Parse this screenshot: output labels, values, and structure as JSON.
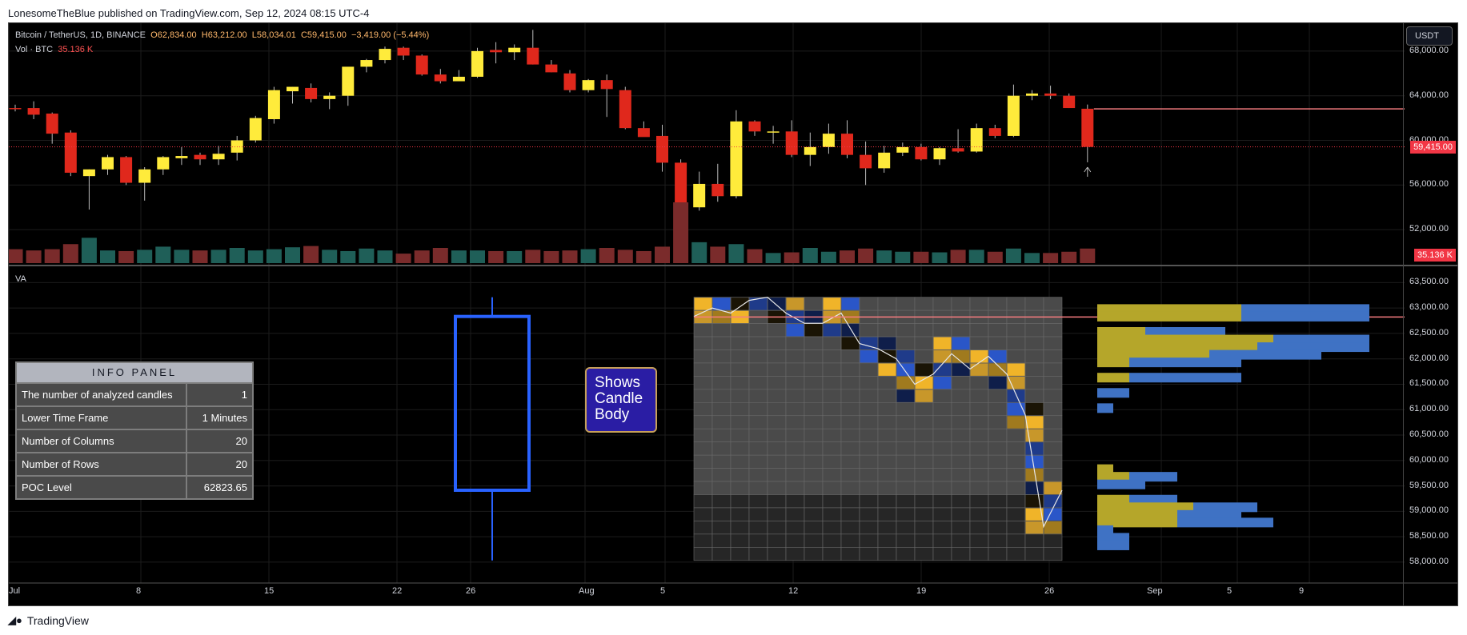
{
  "header": {
    "published": "LonesomeTheBlue published on TradingView.com, Sep 12, 2024 08:15 UTC-4"
  },
  "legend": {
    "symbol": "Bitcoin / TetherUS, 1D, BINANCE",
    "o": "O62,834.00",
    "h": "H63,212.00",
    "l": "L58,034.01",
    "c": "C59,415.00",
    "chg": "−3,419.00 (−5.44%)",
    "vol_label": "Vol · BTC",
    "vol_value": "35.136 K"
  },
  "price_axis": {
    "currency": "USDT",
    "ticks": [
      "68,000.00",
      "64,000.00",
      "60,000.00",
      "56,000.00",
      "52,000.00"
    ],
    "last_price": "59,415.00",
    "last_volume": "35.136 K"
  },
  "va_axis": {
    "ticks": [
      "63,500.00",
      "63,000.00",
      "62,500.00",
      "62,000.00",
      "61,500.00",
      "61,000.00",
      "60,500.00",
      "60,000.00",
      "59,500.00",
      "59,000.00",
      "58,500.00",
      "58,000.00"
    ]
  },
  "time_axis": {
    "labels": [
      "Jul",
      "8",
      "15",
      "22",
      "26",
      "Aug",
      "5",
      "12",
      "19",
      "26",
      "Sep",
      "5",
      "9"
    ]
  },
  "va_panel": {
    "label": "VA",
    "body_label": [
      "Shows",
      "Candle",
      "Body"
    ]
  },
  "info_panel": {
    "title": "INFO PANEL",
    "rows": [
      {
        "key": "The number of analyzed candles",
        "value": "1"
      },
      {
        "key": "Lower Time Frame",
        "value": "1 Minutes"
      },
      {
        "key": "Number of Columns",
        "value": "20"
      },
      {
        "key": "Number of Rows",
        "value": "20"
      },
      {
        "key": "POC Level",
        "value": "62823.65"
      }
    ]
  },
  "footer": {
    "brand": "TradingView"
  },
  "colors": {
    "up": "#ffeb3b",
    "down": "#e0281c",
    "vol_up": "#1f5f58",
    "vol_down": "#7a2b2b",
    "grid": "#1c1c1c",
    "poc": "#f77c80",
    "profile_a": "#b5a62a",
    "profile_b": "#3f72c4"
  },
  "chart_data": [
    {
      "type": "candlestick",
      "title": "Bitcoin / TetherUS, 1D, BINANCE",
      "ylim": [
        49000,
        70500
      ],
      "series": [
        {
          "name": "OHLC",
          "values": [
            [
              62900,
              63200,
              62600,
              62800
            ],
            [
              62900,
              63500,
              61900,
              62300
            ],
            [
              62400,
              62500,
              59700,
              60600
            ],
            [
              60700,
              60900,
              56800,
              57100
            ],
            [
              56800,
              57400,
              53800,
              57400
            ],
            [
              57400,
              58700,
              56900,
              58500
            ],
            [
              58500,
              58600,
              56000,
              56200
            ],
            [
              56200,
              57600,
              54600,
              57400
            ],
            [
              57400,
              58600,
              56900,
              58500
            ],
            [
              58400,
              59400,
              57800,
              58600
            ],
            [
              58700,
              58900,
              57800,
              58300
            ],
            [
              58300,
              59500,
              57800,
              58800
            ],
            [
              58900,
              60400,
              58200,
              60000
            ],
            [
              60000,
              62200,
              59800,
              62000
            ],
            [
              61900,
              64800,
              61500,
              64500
            ],
            [
              64400,
              64800,
              63300,
              64800
            ],
            [
              64700,
              65100,
              63400,
              63700
            ],
            [
              63700,
              64300,
              62800,
              64000
            ],
            [
              64000,
              65000,
              63100,
              66600
            ],
            [
              66600,
              67300,
              66100,
              67200
            ],
            [
              67200,
              68400,
              66900,
              68200
            ],
            [
              68300,
              68400,
              67200,
              67600
            ],
            [
              67600,
              67700,
              65800,
              65900
            ],
            [
              65900,
              66400,
              65100,
              65300
            ],
            [
              65300,
              66300,
              65400,
              65700
            ],
            [
              65700,
              68300,
              65600,
              68000
            ],
            [
              68100,
              68800,
              66900,
              67900
            ],
            [
              67900,
              68600,
              67200,
              68300
            ],
            [
              68300,
              69900,
              66800,
              66800
            ],
            [
              66800,
              67200,
              66100,
              66100
            ],
            [
              66000,
              66300,
              64300,
              64500
            ],
            [
              64500,
              65500,
              64300,
              65400
            ],
            [
              65400,
              65900,
              62100,
              64600
            ],
            [
              64500,
              64800,
              61000,
              61100
            ],
            [
              61100,
              61700,
              60500,
              60300
            ],
            [
              60400,
              61400,
              57200,
              58000
            ],
            [
              58000,
              58300,
              49100,
              53900
            ],
            [
              54000,
              57200,
              53700,
              56100
            ],
            [
              56100,
              57900,
              54500,
              55000
            ],
            [
              55000,
              62700,
              54800,
              61700
            ],
            [
              61700,
              61800,
              60400,
              60800
            ],
            [
              60800,
              61300,
              59700,
              60800
            ],
            [
              60800,
              61800,
              58500,
              58700
            ],
            [
              58700,
              60700,
              57700,
              59400
            ],
            [
              59400,
              61500,
              58800,
              60600
            ],
            [
              60600,
              61800,
              58400,
              58700
            ],
            [
              58700,
              59900,
              56000,
              57500
            ],
            [
              57500,
              59500,
              57100,
              58900
            ],
            [
              58900,
              59800,
              58600,
              59400
            ],
            [
              59400,
              59700,
              58200,
              58300
            ],
            [
              58300,
              59400,
              57800,
              59300
            ],
            [
              59300,
              61000,
              58900,
              59000
            ],
            [
              59000,
              61500,
              58900,
              61100
            ],
            [
              61100,
              61400,
              60200,
              60400
            ],
            [
              60400,
              65000,
              60300,
              64000
            ],
            [
              64000,
              64500,
              63600,
              64200
            ],
            [
              64200,
              64900,
              63700,
              64000
            ],
            [
              64000,
              64200,
              62900,
              62900
            ],
            [
              62834,
              63212,
              58034,
              59415
            ]
          ]
        },
        {
          "name": "Vol · BTC",
          "values": [
            22,
            20,
            22,
            30,
            40,
            20,
            19,
            21,
            26,
            21,
            20,
            21,
            24,
            20,
            22,
            25,
            27,
            21,
            19,
            23,
            20,
            15,
            20,
            24,
            20,
            20,
            19,
            19,
            21,
            19,
            20,
            22,
            24,
            21,
            19,
            26,
            96,
            33,
            26,
            30,
            22,
            16,
            17,
            24,
            18,
            20,
            23,
            20,
            18,
            18,
            17,
            21,
            21,
            18,
            23,
            16,
            16,
            18,
            23
          ]
        }
      ]
    },
    {
      "type": "heatmap",
      "title": "VA",
      "columns": 20,
      "rows": 20,
      "poc_level": 62823.65,
      "ylim": [
        57700,
        63600
      ],
      "price_path": [
        62834,
        63000,
        62900,
        63150,
        63212,
        62900,
        62700,
        62700,
        62900,
        62300,
        62200,
        62000,
        61500,
        61700,
        62100,
        61800,
        62050,
        61700,
        60900,
        58700,
        59415
      ],
      "profile_levels": [
        62980,
        62830,
        62680,
        62530,
        62380,
        62230,
        62080,
        61930,
        61780,
        61630,
        61480,
        61330,
        61180,
        61030,
        60880,
        60730,
        60580,
        60430,
        60280,
        60130,
        59980,
        59830,
        59680,
        59530,
        59380,
        59230,
        59080,
        58930,
        58780,
        58630,
        58480,
        58330,
        58180
      ],
      "profile_a": [
        180,
        180,
        0,
        60,
        220,
        200,
        140,
        40,
        0,
        40,
        0,
        0,
        0,
        0,
        0,
        0,
        0,
        0,
        0,
        0,
        0,
        20,
        40,
        0,
        0,
        40,
        120,
        100,
        100,
        0,
        0,
        0,
        0
      ],
      "profile_b": [
        160,
        160,
        0,
        100,
        120,
        140,
        140,
        140,
        0,
        140,
        0,
        40,
        0,
        20,
        0,
        0,
        0,
        0,
        0,
        0,
        0,
        0,
        60,
        60,
        0,
        60,
        80,
        80,
        120,
        20,
        40,
        40,
        0
      ],
      "price_ticks": [
        "63,500.00",
        "63,000.00",
        "62,500.00",
        "62,000.00",
        "61,500.00",
        "61,000.00",
        "60,500.00",
        "60,000.00",
        "59,500.00",
        "59,000.00",
        "58,500.00",
        "58,000.00"
      ]
    }
  ]
}
